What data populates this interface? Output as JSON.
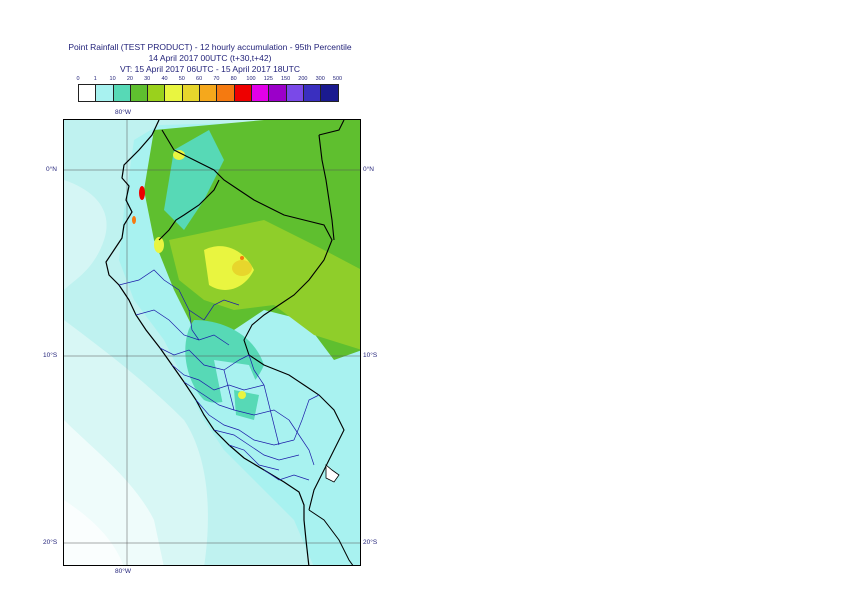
{
  "title": {
    "line1": "Point Rainfall (TEST PRODUCT) - 12 hourly accumulation - 95th Percentile",
    "line2": "14 April 2017 00UTC (t+30,t+42)",
    "line3": "VT: 15 April 2017 06UTC - 15 April 2017 18UTC"
  },
  "legend": {
    "ticks": [
      "0",
      "1",
      "10",
      "20",
      "30",
      "40",
      "50",
      "60",
      "70",
      "80",
      "100",
      "125",
      "150",
      "200",
      "300",
      "500"
    ],
    "colors": [
      "#ffffff",
      "#a8f2f0",
      "#57d9b6",
      "#5fbf2f",
      "#9ad11c",
      "#e9f540",
      "#e7d62c",
      "#f5a81c",
      "#f57a10",
      "#ee0000",
      "#e200e8",
      "#9b00c9",
      "#7a49e8",
      "#3a2fbf",
      "#1a1a8f"
    ]
  },
  "axes": {
    "lon_top": "80°W",
    "lon_bottom": "80°W",
    "lat_left": [
      "0°N",
      "10°S",
      "20°S"
    ],
    "lat_right": [
      "0°N",
      "10°S",
      "20°S"
    ]
  }
}
